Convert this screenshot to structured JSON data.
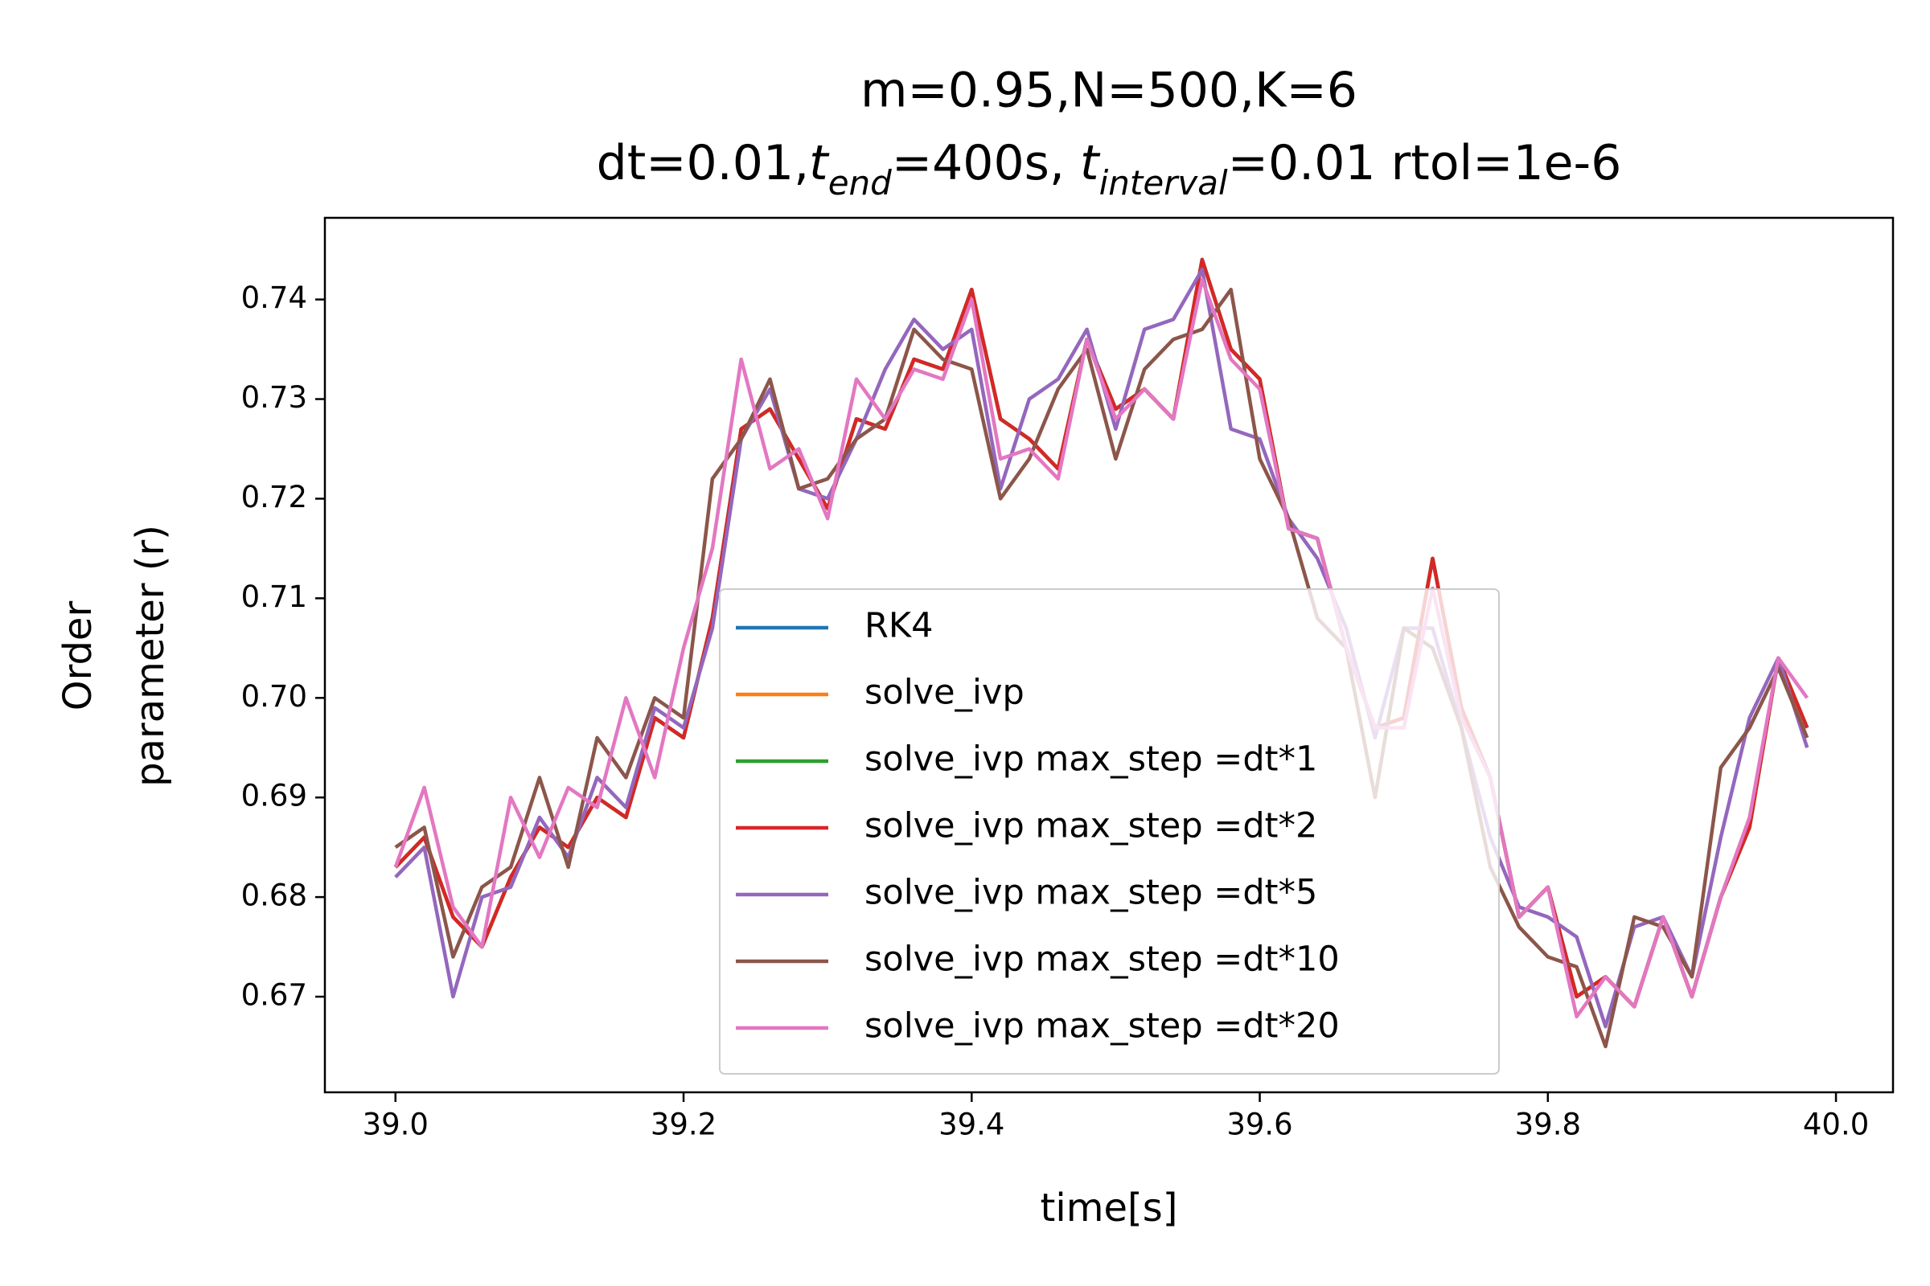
{
  "chart_data": {
    "type": "line",
    "title": "m=0.95,N=500,K=6",
    "title2": [
      {
        "text": "dt=0.01,"
      },
      {
        "text": "t",
        "italic": true
      },
      {
        "text": "end",
        "italic": true,
        "sub": true
      },
      {
        "text": "=400s, "
      },
      {
        "text": "t",
        "italic": true
      },
      {
        "text": "interval",
        "italic": true,
        "sub": true
      },
      {
        "text": "=0.01 rtol=1e-6"
      }
    ],
    "xlabel": "time[s]",
    "ylabel": [
      "Order",
      "parameter (r)"
    ],
    "x": [
      39.0,
      39.02,
      39.04,
      39.06,
      39.08,
      39.1,
      39.12,
      39.14,
      39.16,
      39.18,
      39.2,
      39.22,
      39.24,
      39.26,
      39.28,
      39.3,
      39.32,
      39.34,
      39.36,
      39.38,
      39.4,
      39.42,
      39.44,
      39.46,
      39.48,
      39.5,
      39.52,
      39.54,
      39.56,
      39.58,
      39.6,
      39.62,
      39.64,
      39.66,
      39.68,
      39.7,
      39.72,
      39.74,
      39.76,
      39.78,
      39.8,
      39.82,
      39.84,
      39.86,
      39.88,
      39.9,
      39.92,
      39.94,
      39.96,
      39.98
    ],
    "series": [
      {
        "name": "RK4",
        "color": "#1f77b4",
        "values": [
          0.683,
          0.686,
          0.678,
          0.675,
          0.682,
          0.687,
          0.685,
          0.69,
          0.688,
          0.698,
          0.696,
          0.708,
          0.727,
          0.729,
          0.724,
          0.719,
          0.728,
          0.727,
          0.734,
          0.733,
          0.741,
          0.728,
          0.726,
          0.723,
          0.736,
          0.729,
          0.731,
          0.728,
          0.744,
          0.735,
          0.732,
          0.717,
          0.716,
          0.705,
          0.697,
          0.698,
          0.714,
          0.699,
          0.692,
          0.678,
          0.681,
          0.67,
          0.672,
          0.669,
          0.678,
          0.67,
          0.68,
          0.687,
          0.704,
          0.697
        ]
      },
      {
        "name": "solve_ivp",
        "color": "#ff7f0e",
        "values": [
          0.683,
          0.686,
          0.678,
          0.675,
          0.682,
          0.687,
          0.685,
          0.69,
          0.688,
          0.698,
          0.696,
          0.708,
          0.727,
          0.729,
          0.724,
          0.719,
          0.728,
          0.727,
          0.734,
          0.733,
          0.741,
          0.728,
          0.726,
          0.723,
          0.736,
          0.729,
          0.731,
          0.728,
          0.744,
          0.735,
          0.732,
          0.717,
          0.716,
          0.705,
          0.697,
          0.698,
          0.714,
          0.699,
          0.692,
          0.678,
          0.681,
          0.67,
          0.672,
          0.669,
          0.678,
          0.67,
          0.68,
          0.687,
          0.704,
          0.697
        ]
      },
      {
        "name": "solve_ivp max_step =dt*1",
        "color": "#2ca02c",
        "values": [
          0.683,
          0.686,
          0.678,
          0.675,
          0.682,
          0.687,
          0.685,
          0.69,
          0.688,
          0.698,
          0.696,
          0.708,
          0.727,
          0.729,
          0.724,
          0.719,
          0.728,
          0.727,
          0.734,
          0.733,
          0.741,
          0.728,
          0.726,
          0.723,
          0.736,
          0.729,
          0.731,
          0.728,
          0.744,
          0.735,
          0.732,
          0.717,
          0.716,
          0.705,
          0.697,
          0.698,
          0.714,
          0.699,
          0.692,
          0.678,
          0.681,
          0.67,
          0.672,
          0.669,
          0.678,
          0.67,
          0.68,
          0.687,
          0.704,
          0.697
        ]
      },
      {
        "name": "solve_ivp max_step =dt*2",
        "color": "#d62728",
        "values": [
          0.683,
          0.686,
          0.678,
          0.675,
          0.682,
          0.687,
          0.685,
          0.69,
          0.688,
          0.698,
          0.696,
          0.708,
          0.727,
          0.729,
          0.724,
          0.719,
          0.728,
          0.727,
          0.734,
          0.733,
          0.741,
          0.728,
          0.726,
          0.723,
          0.736,
          0.729,
          0.731,
          0.728,
          0.744,
          0.735,
          0.732,
          0.717,
          0.716,
          0.705,
          0.697,
          0.698,
          0.714,
          0.699,
          0.692,
          0.678,
          0.681,
          0.67,
          0.672,
          0.669,
          0.678,
          0.67,
          0.68,
          0.687,
          0.704,
          0.697
        ]
      },
      {
        "name": "solve_ivp max_step =dt*5",
        "color": "#9467bd",
        "values": [
          0.682,
          0.685,
          0.67,
          0.68,
          0.681,
          0.688,
          0.684,
          0.692,
          0.689,
          0.699,
          0.697,
          0.707,
          0.726,
          0.731,
          0.721,
          0.72,
          0.726,
          0.733,
          0.738,
          0.735,
          0.737,
          0.721,
          0.73,
          0.732,
          0.737,
          0.727,
          0.737,
          0.738,
          0.743,
          0.727,
          0.726,
          0.718,
          0.714,
          0.707,
          0.696,
          0.707,
          0.707,
          0.697,
          0.686,
          0.679,
          0.678,
          0.676,
          0.667,
          0.677,
          0.678,
          0.672,
          0.686,
          0.698,
          0.704,
          0.695
        ]
      },
      {
        "name": "solve_ivp max_step =dt*10",
        "color": "#8c564b",
        "values": [
          0.685,
          0.687,
          0.674,
          0.681,
          0.683,
          0.692,
          0.683,
          0.696,
          0.692,
          0.7,
          0.698,
          0.722,
          0.726,
          0.732,
          0.721,
          0.722,
          0.726,
          0.728,
          0.737,
          0.734,
          0.733,
          0.72,
          0.724,
          0.731,
          0.735,
          0.724,
          0.733,
          0.736,
          0.737,
          0.741,
          0.724,
          0.718,
          0.708,
          0.705,
          0.69,
          0.707,
          0.705,
          0.697,
          0.683,
          0.677,
          0.674,
          0.673,
          0.665,
          0.678,
          0.677,
          0.672,
          0.693,
          0.697,
          0.703,
          0.696
        ]
      },
      {
        "name": "solve_ivp max_step =dt*20",
        "color": "#e377c2",
        "values": [
          0.683,
          0.691,
          0.679,
          0.675,
          0.69,
          0.684,
          0.691,
          0.689,
          0.7,
          0.692,
          0.705,
          0.715,
          0.734,
          0.723,
          0.725,
          0.718,
          0.732,
          0.728,
          0.733,
          0.732,
          0.74,
          0.724,
          0.725,
          0.722,
          0.736,
          0.728,
          0.731,
          0.728,
          0.742,
          0.734,
          0.731,
          0.717,
          0.716,
          0.705,
          0.697,
          0.697,
          0.711,
          0.698,
          0.692,
          0.678,
          0.681,
          0.668,
          0.672,
          0.669,
          0.678,
          0.67,
          0.68,
          0.688,
          0.704,
          0.7
        ]
      }
    ],
    "xlim": [
      38.951,
      40.0396
    ],
    "ylim": [
      0.6604,
      0.7482
    ],
    "xticks": [
      {
        "value": 39.0,
        "label": "39.0"
      },
      39.2,
      39.4,
      39.6,
      39.8,
      {
        "value": 40.0,
        "label": "40.0"
      }
    ],
    "yticks": [
      0.67,
      0.68,
      0.69,
      {
        "value": 0.7,
        "label": "0.70"
      },
      0.71,
      0.72,
      0.73,
      0.74
    ],
    "legend_loc": "center"
  }
}
